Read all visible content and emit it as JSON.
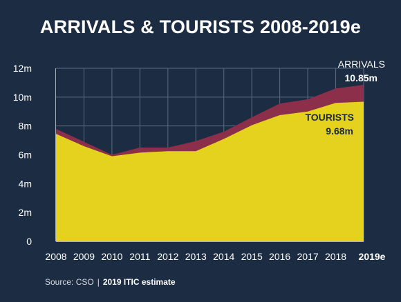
{
  "title": "ARRIVALS & TOURISTS 2008-2019e",
  "source": {
    "prefix": "Source: CSO",
    "separator": "|",
    "estimate_note": "2019 ITIC estimate"
  },
  "colors": {
    "background": "#1c2c43",
    "arrivals": "#8c2f4a",
    "tourists": "#e5d21f",
    "grid": "#5b6b82",
    "text": "#ffffff"
  },
  "chart_data": {
    "type": "area",
    "x": [
      "2008",
      "2009",
      "2010",
      "2011",
      "2012",
      "2013",
      "2014",
      "2015",
      "2016",
      "2017",
      "2018",
      "2019e"
    ],
    "series": [
      {
        "name": "ARRIVALS",
        "values": [
          7.8,
          6.9,
          6.0,
          6.5,
          6.5,
          6.95,
          7.6,
          8.6,
          9.55,
          9.85,
          10.6,
          10.85
        ]
      },
      {
        "name": "TOURISTS",
        "values": [
          7.45,
          6.6,
          5.9,
          6.15,
          6.25,
          6.25,
          7.1,
          8.05,
          8.75,
          9.0,
          9.6,
          9.68
        ]
      }
    ],
    "yticks": [
      "0",
      "2m",
      "4m",
      "6m",
      "8m",
      "10m",
      "12m"
    ],
    "ylim": [
      0,
      12
    ],
    "grid": true,
    "annotations": [
      {
        "label": "ARRIVALS",
        "value": "10.85m"
      },
      {
        "label": "TOURISTS",
        "value": "9.68m"
      }
    ]
  }
}
